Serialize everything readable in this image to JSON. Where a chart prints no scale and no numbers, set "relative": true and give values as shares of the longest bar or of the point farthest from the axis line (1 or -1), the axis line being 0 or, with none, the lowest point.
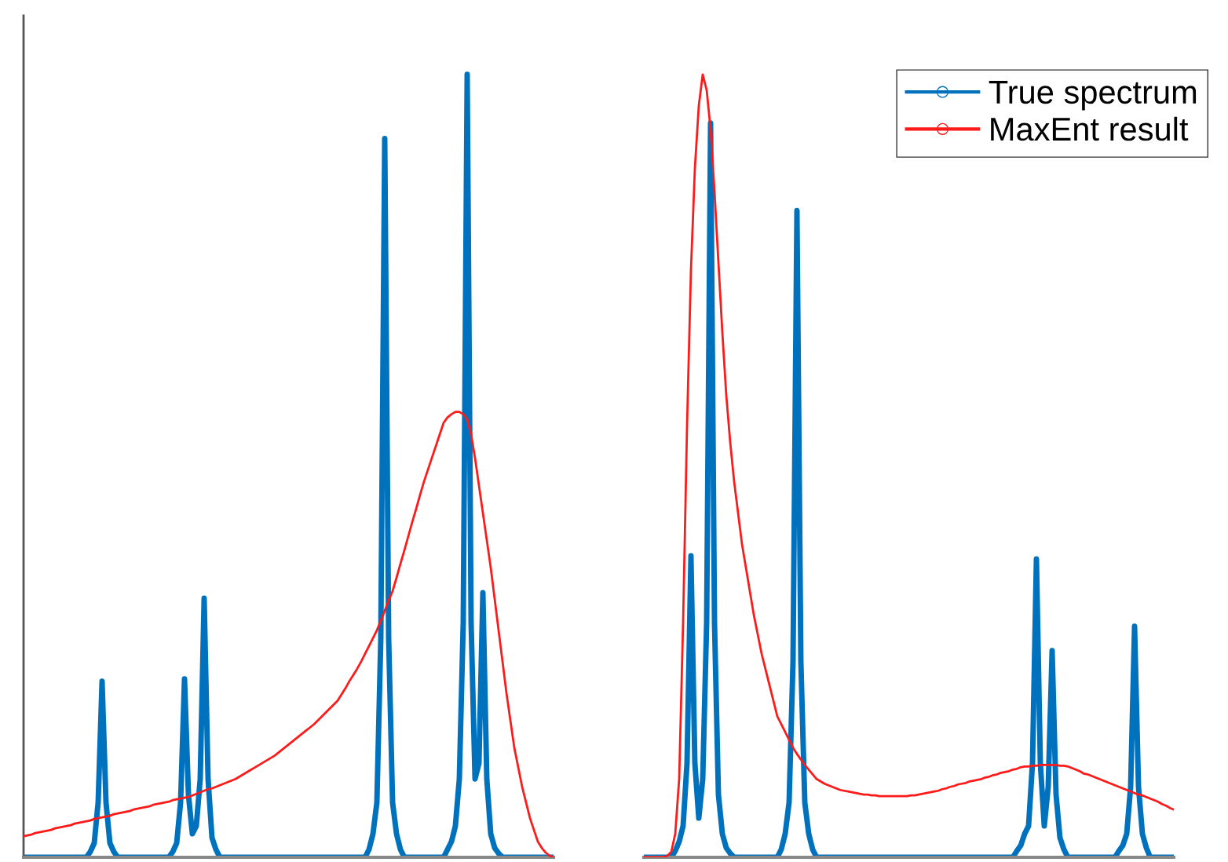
{
  "chart_data": [
    {
      "type": "line",
      "relative": true,
      "categories": [
        null,
        null,
        null,
        null,
        null,
        null,
        null,
        null,
        null,
        null,
        null,
        null,
        null,
        null,
        null,
        null,
        null,
        null,
        null,
        null,
        null,
        null,
        null,
        null,
        null,
        null,
        null,
        null,
        null,
        null,
        null,
        null,
        null,
        null,
        null,
        null,
        null,
        null,
        null,
        null,
        null,
        null,
        null,
        null,
        null,
        null,
        null,
        null,
        null,
        null,
        null,
        null,
        null,
        null,
        null,
        null,
        null,
        null,
        null,
        null,
        null,
        null,
        null,
        null,
        null,
        null,
        null,
        null,
        null,
        null,
        null,
        null,
        null,
        null,
        null,
        null,
        null,
        null,
        null,
        null,
        null,
        null,
        null,
        null,
        null,
        null,
        null,
        null,
        null,
        null,
        null,
        null,
        null,
        null,
        null,
        null,
        null,
        null,
        null,
        null,
        null,
        null,
        null,
        null,
        null,
        null,
        null,
        null,
        null,
        null,
        null,
        null,
        null,
        null,
        null,
        null,
        null,
        null,
        null,
        null,
        null,
        null,
        null,
        null,
        null,
        null,
        null,
        null,
        null,
        null,
        null,
        null,
        null,
        null,
        null,
        null
      ],
      "series": [
        {
          "color": "#0072bd",
          "values": [
            0,
            0,
            0,
            0,
            0,
            0,
            0,
            0,
            0,
            0,
            0,
            0,
            0,
            0,
            0,
            0,
            0,
            0.007,
            0.018,
            0.07,
            0.225,
            0.07,
            0.018,
            0.007,
            0,
            0,
            0,
            0,
            0,
            0,
            0,
            0,
            0,
            0,
            0,
            0,
            0,
            0,
            0.007,
            0.018,
            0.07,
            0.228,
            0.08,
            0.03,
            0.04,
            0.1,
            0.331,
            0.1,
            0.025,
            0.01,
            0,
            0,
            0,
            0,
            0,
            0,
            0,
            0,
            0,
            0,
            0,
            0,
            0,
            0,
            0,
            0,
            0,
            0,
            0,
            0,
            0,
            0,
            0,
            0,
            0,
            0,
            0,
            0,
            0,
            0,
            0,
            0,
            0,
            0,
            0,
            0,
            0,
            0,
            0.01,
            0.03,
            0.07,
            0.28,
            0.918,
            0.28,
            0.07,
            0.03,
            0.01,
            0,
            0,
            0,
            0,
            0,
            0,
            0,
            0,
            0,
            0,
            0,
            0.01,
            0.02,
            0.04,
            0.1,
            0.3,
            1.0,
            0.3,
            0.1,
            0.12,
            0.338,
            0.1,
            0.03,
            0.012,
            0.005,
            0,
            0,
            0,
            0,
            0,
            0,
            0,
            0,
            0,
            0,
            0,
            0,
            0,
            0
          ]
        },
        {
          "color": "#ff1a1a",
          "values": [
            0.027,
            0.028,
            0.029,
            0.031,
            0.032,
            0.033,
            0.034,
            0.035,
            0.037,
            0.038,
            0.039,
            0.04,
            0.041,
            0.043,
            0.044,
            0.045,
            0.046,
            0.047,
            0.049,
            0.05,
            0.051,
            0.052,
            0.053,
            0.055,
            0.056,
            0.057,
            0.058,
            0.059,
            0.061,
            0.062,
            0.063,
            0.064,
            0.065,
            0.067,
            0.068,
            0.069,
            0.07,
            0.071,
            0.073,
            0.074,
            0.075,
            0.076,
            0.077,
            0.079,
            0.081,
            0.083,
            0.085,
            0.087,
            0.088,
            0.09,
            0.092,
            0.094,
            0.096,
            0.098,
            0.1,
            0.103,
            0.106,
            0.109,
            0.112,
            0.115,
            0.118,
            0.121,
            0.124,
            0.127,
            0.13,
            0.134,
            0.138,
            0.142,
            0.146,
            0.15,
            0.154,
            0.158,
            0.162,
            0.166,
            0.17,
            0.175,
            0.18,
            0.185,
            0.19,
            0.195,
            0.2,
            0.208,
            0.216,
            0.225,
            0.233,
            0.241,
            0.25,
            0.26,
            0.27,
            0.28,
            0.29,
            0.302,
            0.315,
            0.328,
            0.34,
            0.357,
            0.375,
            0.392,
            0.41,
            0.428,
            0.445,
            0.463,
            0.48,
            0.495,
            0.51,
            0.525,
            0.54,
            0.555,
            0.562,
            0.566,
            0.569,
            0.569,
            0.566,
            0.56,
            0.54,
            0.51,
            0.475,
            0.44,
            0.405,
            0.37,
            0.33,
            0.29,
            0.25,
            0.21,
            0.175,
            0.14,
            0.115,
            0.09,
            0.07,
            0.05,
            0.035,
            0.02,
            0.012,
            0.006,
            0.002,
            0
          ]
        }
      ]
    },
    {
      "type": "line",
      "relative": true,
      "legend": "top right",
      "categories": [
        null,
        null,
        null,
        null,
        null,
        null,
        null,
        null,
        null,
        null,
        null,
        null,
        null,
        null,
        null,
        null,
        null,
        null,
        null,
        null,
        null,
        null,
        null,
        null,
        null,
        null,
        null,
        null,
        null,
        null,
        null,
        null,
        null,
        null,
        null,
        null,
        null,
        null,
        null,
        null,
        null,
        null,
        null,
        null,
        null,
        null,
        null,
        null,
        null,
        null,
        null,
        null,
        null,
        null,
        null,
        null,
        null,
        null,
        null,
        null,
        null,
        null,
        null,
        null,
        null,
        null,
        null,
        null,
        null,
        null,
        null,
        null,
        null,
        null,
        null,
        null,
        null,
        null,
        null,
        null,
        null,
        null,
        null,
        null,
        null,
        null,
        null,
        null,
        null,
        null,
        null,
        null,
        null,
        null,
        null,
        null,
        null,
        null,
        null,
        null,
        null,
        null,
        null,
        null,
        null,
        null,
        null,
        null,
        null,
        null,
        null,
        null,
        null,
        null,
        null,
        null,
        null,
        null,
        null,
        null,
        null,
        null,
        null,
        null,
        null,
        null,
        null,
        null,
        null,
        null,
        null,
        null,
        null,
        null,
        null,
        null
      ],
      "series": [
        {
          "name": "True spectrum",
          "color": "#0072bd",
          "values": [
            0,
            0,
            0,
            0,
            0,
            0,
            0,
            0,
            0.008,
            0.02,
            0.04,
            0.12,
            0.385,
            0.12,
            0.05,
            0.1,
            0.3,
            0.938,
            0.3,
            0.08,
            0.03,
            0.012,
            0.005,
            0,
            0,
            0,
            0,
            0,
            0,
            0,
            0,
            0,
            0,
            0,
            0,
            0.01,
            0.03,
            0.07,
            0.25,
            0.826,
            0.25,
            0.07,
            0.03,
            0.01,
            0,
            0,
            0,
            0,
            0,
            0,
            0,
            0,
            0,
            0,
            0,
            0,
            0,
            0,
            0,
            0,
            0,
            0,
            0,
            0,
            0,
            0,
            0,
            0,
            0,
            0,
            0,
            0,
            0,
            0,
            0,
            0,
            0,
            0,
            0,
            0,
            0,
            0,
            0,
            0,
            0,
            0,
            0,
            0,
            0,
            0,
            0,
            0,
            0,
            0,
            0,
            0.008,
            0.015,
            0.03,
            0.04,
            0.12,
            0.381,
            0.12,
            0.04,
            0.09,
            0.264,
            0.08,
            0.025,
            0.01,
            0,
            0,
            0,
            0,
            0,
            0,
            0,
            0,
            0,
            0,
            0,
            0,
            0,
            0.008,
            0.015,
            0.03,
            0.09,
            0.295,
            0.09,
            0.03,
            0.012,
            0,
            0,
            0,
            0,
            0,
            0,
            0
          ]
        },
        {
          "name": "MaxEnt result",
          "color": "#ff1a1a",
          "values": [
            0,
            0,
            0,
            0,
            0,
            0,
            0.002,
            0.007,
            0.03,
            0.1,
            0.3,
            0.55,
            0.75,
            0.88,
            0.96,
            1.0,
            0.98,
            0.93,
            0.85,
            0.76,
            0.67,
            0.59,
            0.53,
            0.48,
            0.44,
            0.4,
            0.37,
            0.34,
            0.31,
            0.285,
            0.26,
            0.24,
            0.22,
            0.2,
            0.18,
            0.17,
            0.16,
            0.15,
            0.14,
            0.132,
            0.125,
            0.118,
            0.112,
            0.106,
            0.1,
            0.097,
            0.094,
            0.092,
            0.09,
            0.088,
            0.086,
            0.085,
            0.084,
            0.083,
            0.082,
            0.081,
            0.08,
            0.08,
            0.079,
            0.079,
            0.078,
            0.078,
            0.078,
            0.078,
            0.078,
            0.078,
            0.078,
            0.078,
            0.079,
            0.079,
            0.08,
            0.081,
            0.082,
            0.083,
            0.084,
            0.085,
            0.087,
            0.088,
            0.09,
            0.091,
            0.093,
            0.094,
            0.095,
            0.097,
            0.098,
            0.099,
            0.1,
            0.102,
            0.103,
            0.105,
            0.106,
            0.108,
            0.109,
            0.11,
            0.112,
            0.113,
            0.115,
            0.116,
            0.116,
            0.117,
            0.117,
            0.118,
            0.118,
            0.118,
            0.118,
            0.118,
            0.117,
            0.117,
            0.116,
            0.114,
            0.112,
            0.11,
            0.107,
            0.106,
            0.104,
            0.102,
            0.1,
            0.098,
            0.096,
            0.094,
            0.092,
            0.09,
            0.088,
            0.086,
            0.084,
            0.082,
            0.08,
            0.079,
            0.077,
            0.075,
            0.073,
            0.071,
            0.068,
            0.066,
            0.063,
            0.061
          ]
        }
      ]
    }
  ]
}
